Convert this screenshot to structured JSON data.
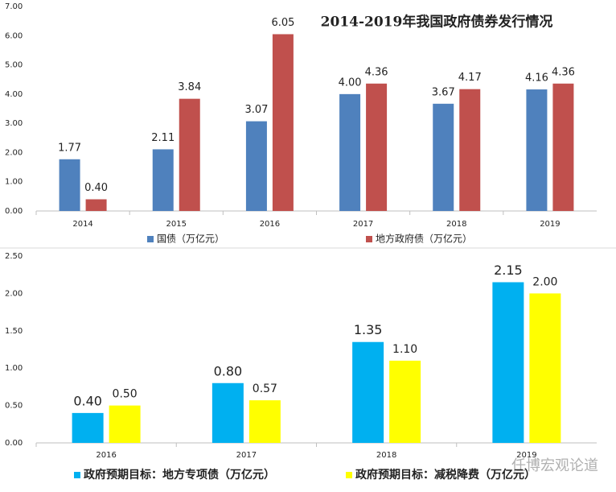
{
  "chart_data": [
    {
      "type": "bar",
      "title": "2014-2019年我国政府债券发行情况",
      "categories": [
        "2014",
        "2015",
        "2016",
        "2017",
        "2018",
        "2019"
      ],
      "series": [
        {
          "name": "国债（万亿元）",
          "color": "#4f81bd",
          "values": [
            1.77,
            2.11,
            3.07,
            4.0,
            3.67,
            4.16
          ],
          "value_labels": [
            "1.77",
            "2.11",
            "3.07",
            "4.00",
            "3.67",
            "4.16"
          ]
        },
        {
          "name": "地方政府债（万亿元）",
          "color": "#c0504d",
          "values": [
            0.4,
            3.84,
            6.05,
            4.36,
            4.17,
            4.36
          ],
          "value_labels": [
            "0.40",
            "3.84",
            "6.05",
            "4.36",
            "4.17",
            "4.36"
          ]
        }
      ],
      "ylim": [
        0,
        7
      ],
      "yticks": [
        {
          "value": 0,
          "label": "0.00"
        },
        {
          "value": 1,
          "label": "1.00"
        },
        {
          "value": 2,
          "label": "2.00"
        },
        {
          "value": 3,
          "label": "3.00"
        },
        {
          "value": 4,
          "label": "4.00"
        },
        {
          "value": 5,
          "label": "5.00"
        },
        {
          "value": 6,
          "label": "6.00"
        },
        {
          "value": 7,
          "label": "7.00"
        }
      ],
      "grid": false
    },
    {
      "type": "bar",
      "categories": [
        "2016",
        "2017",
        "2018",
        "2019"
      ],
      "series": [
        {
          "name": "政府预期目标：地方专项债（万亿元）",
          "color": "#00b0f0",
          "values": [
            0.4,
            0.8,
            1.35,
            2.15
          ],
          "value_labels": [
            "0.40",
            "0.80",
            "1.35",
            "2.15"
          ]
        },
        {
          "name": "政府预期目标：减税降费（万亿元）",
          "color": "#ffff00",
          "values": [
            0.5,
            0.57,
            1.1,
            2.0
          ],
          "value_labels": [
            "0.50",
            "0.57",
            "1.10",
            "2.00"
          ]
        }
      ],
      "ylim": [
        0,
        2.5
      ],
      "yticks": [
        {
          "value": 0,
          "label": "0.00"
        },
        {
          "value": 0.5,
          "label": "0.50"
        },
        {
          "value": 1,
          "label": "1.00"
        },
        {
          "value": 1.5,
          "label": "1.50"
        },
        {
          "value": 2,
          "label": "2.00"
        },
        {
          "value": 2.5,
          "label": "2.50"
        }
      ],
      "grid": false
    }
  ],
  "watermark": "任博宏观论道"
}
